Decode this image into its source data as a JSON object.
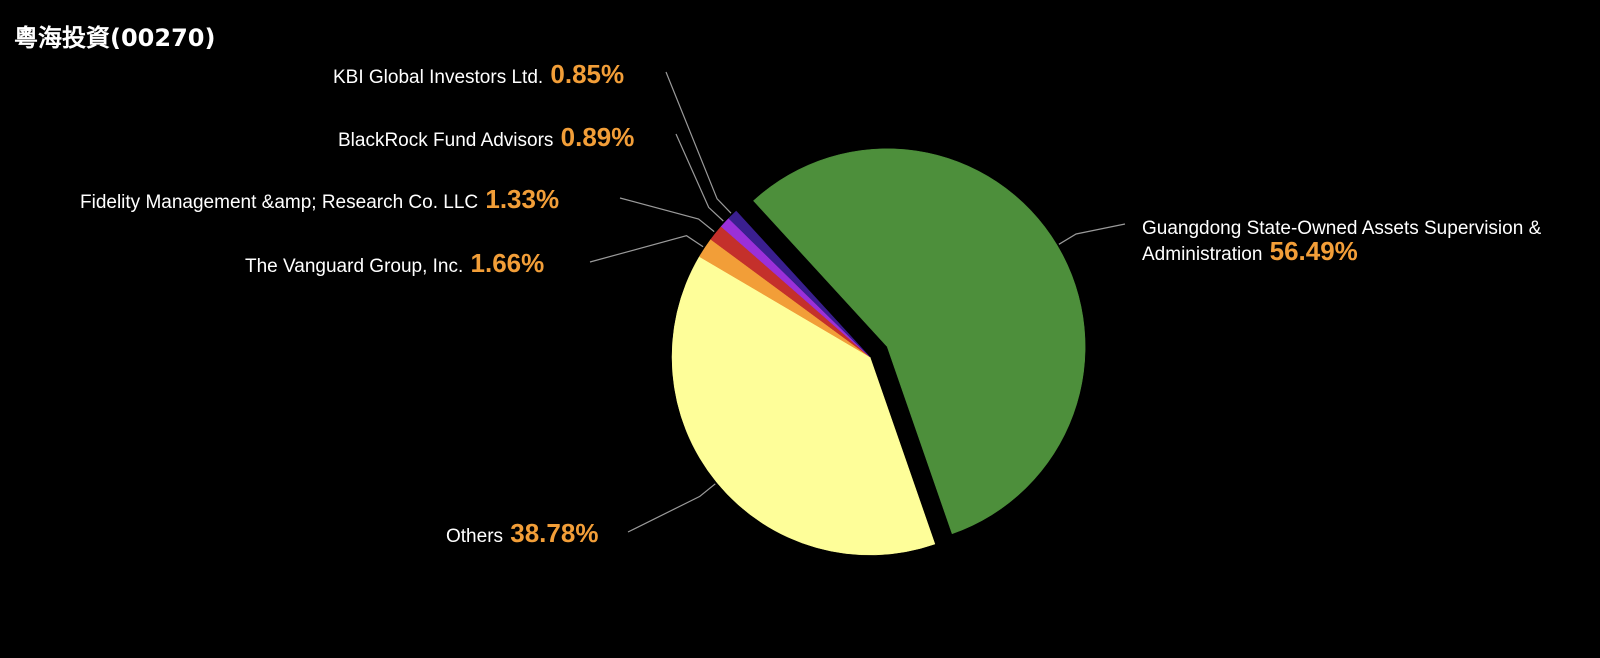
{
  "title": "粵海投資(00270)",
  "chart_data": {
    "type": "pie",
    "title": "粵海投資(00270)",
    "unit": "%",
    "legend": "none",
    "slices": [
      {
        "name": "Guangdong State-Owned Assets Supervision & Administration",
        "name_lines": [
          "Guangdong State-Owned Assets Supervision &",
          "Administration"
        ],
        "value": 56.49,
        "label": "56.49%",
        "color": "#4d8f3b",
        "exploded": true
      },
      {
        "name": "Others",
        "name_lines": [
          "Others"
        ],
        "value": 38.78,
        "label": "38.78%",
        "color": "#fefe99",
        "exploded": false
      },
      {
        "name": "The Vanguard Group, Inc.",
        "name_lines": [
          "The Vanguard Group, Inc."
        ],
        "value": 1.66,
        "label": "1.66%",
        "color": "#f29e38",
        "exploded": false
      },
      {
        "name": "Fidelity Management &amp; Research Co. LLC",
        "name_lines": [
          "Fidelity Management &amp; Research Co. LLC"
        ],
        "value": 1.33,
        "label": "1.33%",
        "color": "#c4302b",
        "exploded": false
      },
      {
        "name": "BlackRock Fund Advisors",
        "name_lines": [
          "BlackRock Fund Advisors"
        ],
        "value": 0.89,
        "label": "0.89%",
        "color": "#9b30d9",
        "exploded": false
      },
      {
        "name": "KBI Global Investors Ltd.",
        "name_lines": [
          "KBI Global Investors Ltd."
        ],
        "value": 0.85,
        "label": "0.85%",
        "color": "#3a1f8f",
        "exploded": false
      }
    ],
    "label_color": "#ffffff",
    "value_color": "#f29e38"
  }
}
